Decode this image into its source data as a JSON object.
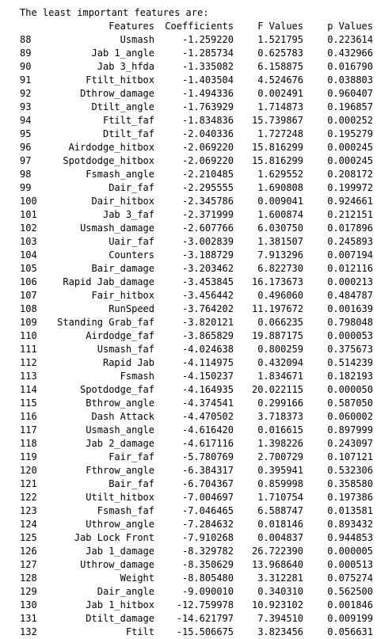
{
  "output": {
    "heading": "The least important features are:",
    "columns": [
      "",
      "Features",
      "Coefficients",
      "F Values",
      "p Values"
    ],
    "rows": [
      [
        "88",
        "Usmash",
        "-1.259220",
        "1.521795",
        "0.223614"
      ],
      [
        "89",
        "Jab 1_angle",
        "-1.285734",
        "0.625783",
        "0.432966"
      ],
      [
        "90",
        "Jab 3_hfda",
        "-1.335082",
        "6.158875",
        "0.016790"
      ],
      [
        "91",
        "Ftilt_hitbox",
        "-1.403504",
        "4.524676",
        "0.038803"
      ],
      [
        "92",
        "Dthrow_damage",
        "-1.494336",
        "0.002491",
        "0.960407"
      ],
      [
        "93",
        "Dtilt_angle",
        "-1.763929",
        "1.714873",
        "0.196857"
      ],
      [
        "94",
        "Ftilt_faf",
        "-1.834836",
        "15.739867",
        "0.000252"
      ],
      [
        "95",
        "Dtilt_faf",
        "-2.040336",
        "1.727248",
        "0.195279"
      ],
      [
        "96",
        "Airdodge_hitbox",
        "-2.069220",
        "15.816299",
        "0.000245"
      ],
      [
        "97",
        "Spotdodge_hitbox",
        "-2.069220",
        "15.816299",
        "0.000245"
      ],
      [
        "98",
        "Fsmash_angle",
        "-2.210485",
        "1.629552",
        "0.208172"
      ],
      [
        "99",
        "Dair_faf",
        "-2.295555",
        "1.690808",
        "0.199972"
      ],
      [
        "100",
        "Dair_hitbox",
        "-2.345786",
        "0.009041",
        "0.924661"
      ],
      [
        "101",
        "Jab 3_faf",
        "-2.371999",
        "1.600874",
        "0.212151"
      ],
      [
        "102",
        "Usmash_damage",
        "-2.607766",
        "6.030750",
        "0.017896"
      ],
      [
        "103",
        "Uair_faf",
        "-3.002839",
        "1.381507",
        "0.245893"
      ],
      [
        "104",
        "Counters",
        "-3.188729",
        "7.913296",
        "0.007194"
      ],
      [
        "105",
        "Bair_damage",
        "-3.203462",
        "6.822730",
        "0.012116"
      ],
      [
        "106",
        "Rapid Jab_damage",
        "-3.453845",
        "16.173673",
        "0.000213"
      ],
      [
        "107",
        "Fair_hitbox",
        "-3.456442",
        "0.496060",
        "0.484787"
      ],
      [
        "108",
        "RunSpeed",
        "-3.764202",
        "11.197672",
        "0.001639"
      ],
      [
        "109",
        "Standing Grab_faf",
        "-3.820121",
        "0.066235",
        "0.798048"
      ],
      [
        "110",
        "Airdodge_faf",
        "-3.865829",
        "19.887175",
        "0.000053"
      ],
      [
        "111",
        "Usmash_faf",
        "-4.024638",
        "0.800259",
        "0.375673"
      ],
      [
        "112",
        "Rapid Jab",
        "-4.114975",
        "0.432094",
        "0.514239"
      ],
      [
        "113",
        "Fsmash",
        "-4.150237",
        "1.834671",
        "0.182193"
      ],
      [
        "114",
        "Spotdodge_faf",
        "-4.164935",
        "20.022115",
        "0.000050"
      ],
      [
        "115",
        "Bthrow_angle",
        "-4.374541",
        "0.299166",
        "0.587050"
      ],
      [
        "116",
        "Dash Attack",
        "-4.470502",
        "3.718373",
        "0.060002"
      ],
      [
        "117",
        "Usmash_angle",
        "-4.616420",
        "0.016615",
        "0.897999"
      ],
      [
        "118",
        "Jab 2_damage",
        "-4.617116",
        "1.398226",
        "0.243097"
      ],
      [
        "119",
        "Fair_faf",
        "-5.780769",
        "2.700729",
        "0.107121"
      ],
      [
        "120",
        "Fthrow_angle",
        "-6.384317",
        "0.395941",
        "0.532306"
      ],
      [
        "121",
        "Bair_faf",
        "-6.704367",
        "0.859998",
        "0.358580"
      ],
      [
        "122",
        "Utilt_hitbox",
        "-7.004697",
        "1.710754",
        "0.197386"
      ],
      [
        "123",
        "Fsmash_faf",
        "-7.046465",
        "6.588747",
        "0.013581"
      ],
      [
        "124",
        "Uthrow_angle",
        "-7.284632",
        "0.018146",
        "0.893432"
      ],
      [
        "125",
        "Jab Lock Front",
        "-7.910268",
        "0.004837",
        "0.944853"
      ],
      [
        "126",
        "Jab 1_damage",
        "-8.329782",
        "26.722390",
        "0.000005"
      ],
      [
        "127",
        "Uthrow_damage",
        "-8.350629",
        "13.968640",
        "0.000513"
      ],
      [
        "128",
        "Weight",
        "-8.805480",
        "3.312281",
        "0.075274"
      ],
      [
        "129",
        "Dair_angle",
        "-9.090010",
        "0.340310",
        "0.562500"
      ],
      [
        "130",
        "Jab 1_hitbox",
        "-12.759978",
        "10.923102",
        "0.001846"
      ],
      [
        "131",
        "Dtilt_damage",
        "-14.621797",
        "7.394510",
        "0.009199"
      ],
      [
        "132",
        "Ftilt",
        "-15.506675",
        "3.823456",
        "0.056631"
      ]
    ]
  }
}
